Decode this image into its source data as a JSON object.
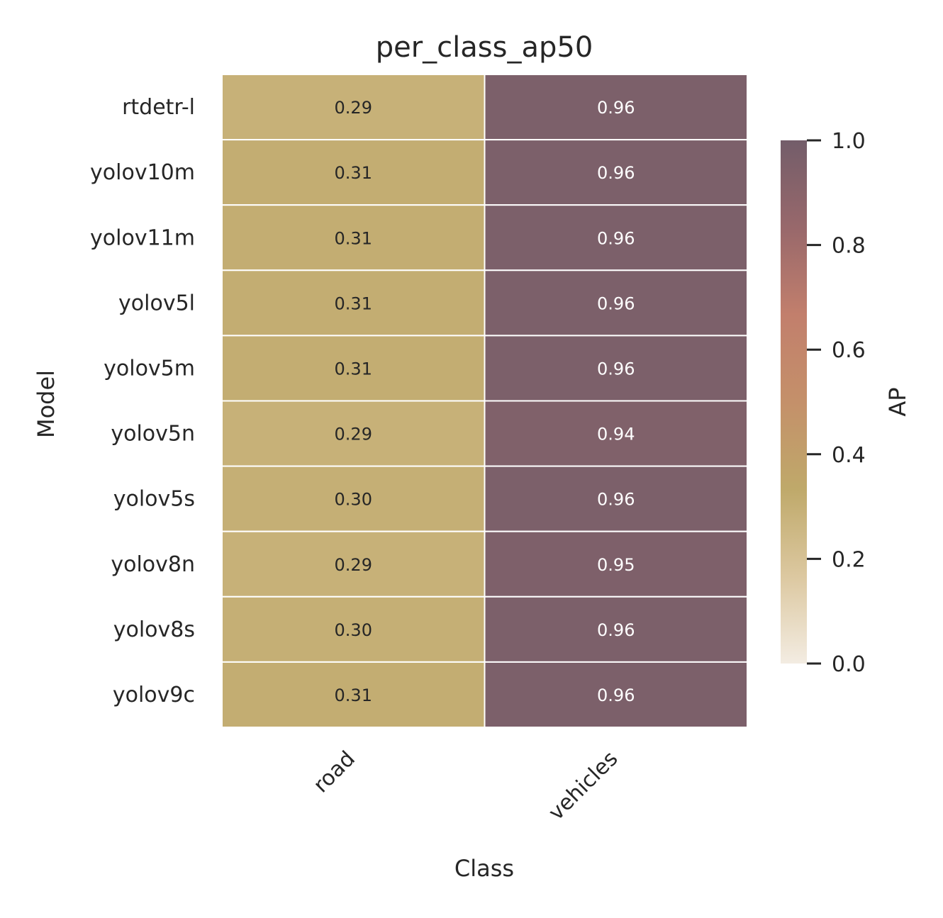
{
  "chart_data": {
    "type": "heatmap",
    "title": "per_class_ap50",
    "xlabel": "Class",
    "ylabel": "Model",
    "x_categories": [
      "road",
      "vehicles"
    ],
    "y_categories": [
      "rtdetr-l",
      "yolov10m",
      "yolov11m",
      "yolov5l",
      "yolov5m",
      "yolov5n",
      "yolov5s",
      "yolov8n",
      "yolov8s",
      "yolov9c"
    ],
    "values": [
      [
        0.29,
        0.96
      ],
      [
        0.31,
        0.96
      ],
      [
        0.31,
        0.96
      ],
      [
        0.31,
        0.96
      ],
      [
        0.31,
        0.96
      ],
      [
        0.29,
        0.94
      ],
      [
        0.3,
        0.96
      ],
      [
        0.29,
        0.95
      ],
      [
        0.3,
        0.96
      ],
      [
        0.31,
        0.96
      ]
    ],
    "value_labels": [
      [
        "0.29",
        "0.96"
      ],
      [
        "0.31",
        "0.96"
      ],
      [
        "0.31",
        "0.96"
      ],
      [
        "0.31",
        "0.96"
      ],
      [
        "0.31",
        "0.96"
      ],
      [
        "0.29",
        "0.94"
      ],
      [
        "0.30",
        "0.96"
      ],
      [
        "0.29",
        "0.95"
      ],
      [
        "0.30",
        "0.96"
      ],
      [
        "0.31",
        "0.96"
      ]
    ],
    "colorbar": {
      "label": "AP",
      "range": [
        0.0,
        1.0
      ],
      "ticks": [
        0.0,
        0.2,
        0.4,
        0.6,
        0.8,
        1.0
      ],
      "tick_labels": [
        "0.0",
        "0.2",
        "0.4",
        "0.6",
        "0.8",
        "1.0"
      ],
      "colormap": [
        "#f3ece2",
        "#dcc8a0",
        "#bfa96a",
        "#c4906a",
        "#c27f6c",
        "#98686b",
        "#735d6a"
      ]
    },
    "grid": true
  }
}
